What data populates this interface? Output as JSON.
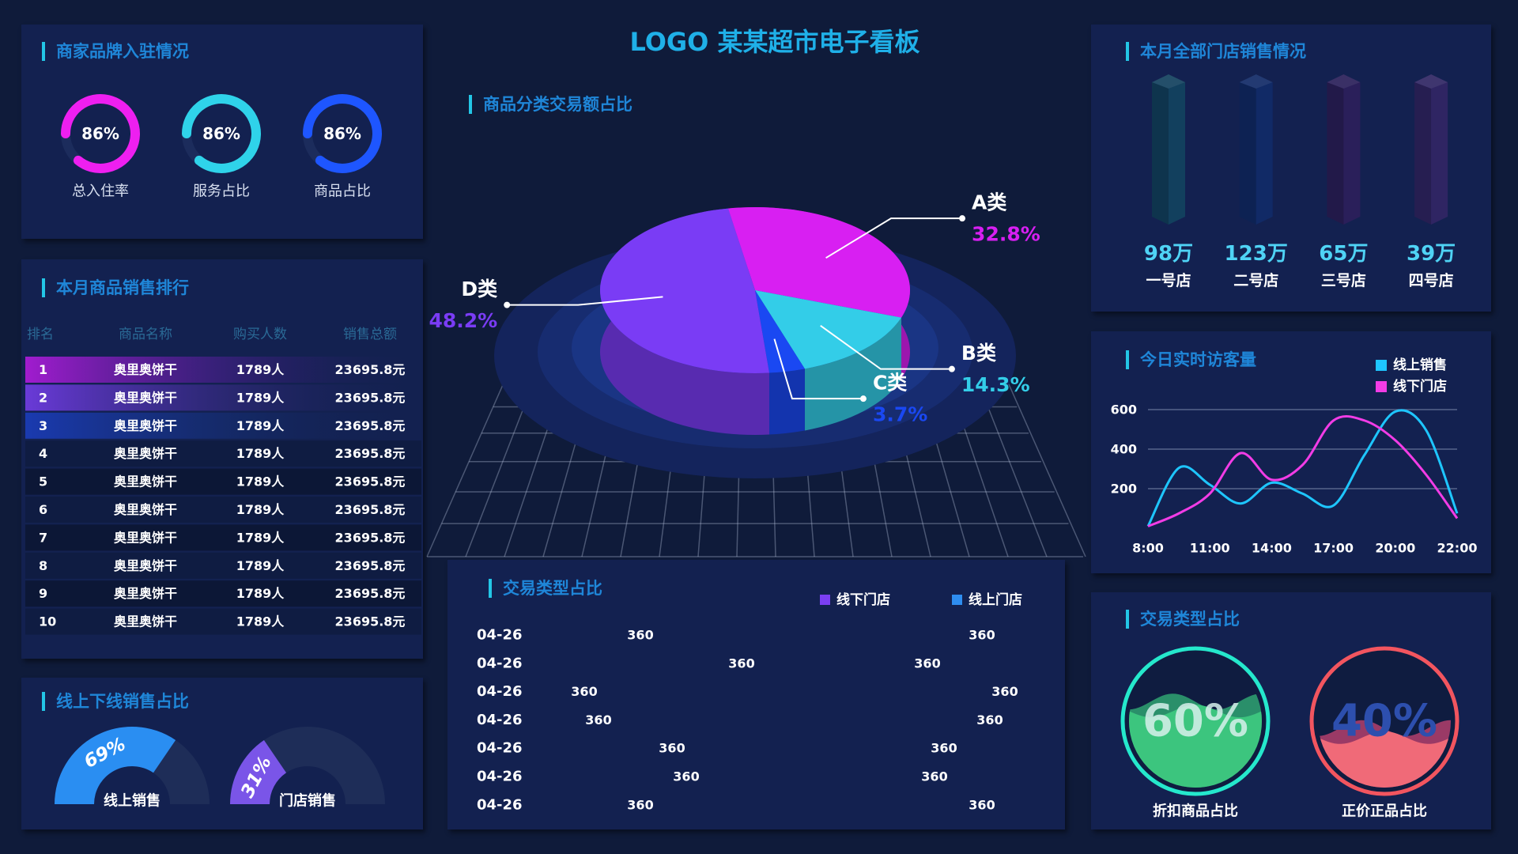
{
  "title": "LOGO 某某超市电子看板",
  "table": {
    "title": "本月商品销售排行",
    "header": [
      "排名",
      "商品名称",
      "购买人数",
      "销售总额"
    ],
    "rows": [
      [
        1,
        "奥里奥饼干",
        "1789人",
        "23695.8元"
      ],
      [
        2,
        "奥里奥饼干",
        "1789人",
        "23695.8元"
      ],
      [
        3,
        "奥里奥饼干",
        "1789人",
        "23695.8元"
      ],
      [
        4,
        "奥里奥饼干",
        "1789人",
        "23695.8元"
      ],
      [
        5,
        "奥里奥饼干",
        "1789人",
        "23695.8元"
      ],
      [
        6,
        "奥里奥饼干",
        "1789人",
        "23695.8元"
      ],
      [
        7,
        "奥里奥饼干",
        "1789人",
        "23695.8元"
      ],
      [
        8,
        "奥里奥饼干",
        "1789人",
        "23695.8元"
      ],
      [
        9,
        "奥里奥饼干",
        "1789人",
        "23695.8元"
      ],
      [
        10,
        "奥里奥饼干",
        "1789人",
        "23695.8元"
      ]
    ]
  },
  "store_sales": {
    "title": "本月全部门店销售情况",
    "items": [
      {
        "amount": "98万",
        "name": "一号店"
      },
      {
        "amount": "123万",
        "name": "二号店"
      },
      {
        "amount": "65万",
        "name": "三号店"
      },
      {
        "amount": "39万",
        "name": "四号店"
      }
    ]
  },
  "chart_data": [
    {
      "type": "donut",
      "title": "商家品牌入驻情况",
      "categories": [
        "总入住率",
        "服务占比",
        "商品占比"
      ],
      "values": [
        86,
        86,
        86
      ],
      "value_labels": [
        "86%",
        "86%",
        "86%"
      ],
      "colors": [
        "#ee1ff0",
        "#2fd3ea",
        "#1e56ff"
      ]
    },
    {
      "type": "pie3d",
      "title": "商品分类交易额占比",
      "categories": [
        "A类",
        "B类",
        "C类",
        "D类"
      ],
      "values": [
        32.8,
        14.3,
        3.7,
        48.2
      ],
      "value_labels": [
        "32.8%",
        "14.3%",
        "3.7%",
        "48.2%"
      ],
      "colors": [
        "#d81ff2",
        "#33cde8",
        "#1a48f2",
        "#7a3cf5"
      ]
    },
    {
      "type": "line",
      "title": "今日实时访客量",
      "categories": [
        "8:00",
        null,
        "11:00",
        null,
        "14:00",
        null,
        "17:00",
        null,
        "20:00",
        null,
        "22:00"
      ],
      "series": [
        {
          "name": "线上销售",
          "color": "#1ec6ff",
          "values": [
            10,
            305,
            220,
            125,
            230,
            175,
            115,
            370,
            590,
            495,
            75
          ]
        },
        {
          "name": "线下门店",
          "color": "#f23ce6",
          "values": [
            10,
            75,
            175,
            380,
            245,
            320,
            545,
            545,
            445,
            270,
            50
          ]
        }
      ],
      "ylim": [
        0,
        650
      ],
      "yticks": [
        200,
        400,
        600
      ],
      "grid": true,
      "legend": "top-right"
    },
    {
      "type": "diverging-bar",
      "title": "交易类型占比",
      "categories": [
        "04-26",
        "04-26",
        "04-26",
        "04-26",
        "04-26",
        "04-26",
        "04-26"
      ],
      "series": [
        {
          "name": "线下门店",
          "color": "#7b3ff2",
          "values": [
            360,
            360,
            360,
            360,
            360,
            360,
            360
          ]
        },
        {
          "name": "线上门店",
          "color": "#2e8df0",
          "values": [
            360,
            360,
            360,
            360,
            360,
            360,
            360
          ]
        }
      ]
    },
    {
      "type": "half-gauge",
      "title": "线上下线销售占比",
      "categories": [
        "线上销售",
        "门店销售"
      ],
      "values": [
        69,
        31
      ],
      "value_labels": [
        "69%",
        "31%"
      ],
      "colors": [
        "#2a8ef2",
        "#7a55e8"
      ]
    },
    {
      "type": "liquid",
      "title": "交易类型占比",
      "categories": [
        "折扣商品占比",
        "正价正品占比"
      ],
      "values": [
        60,
        40
      ],
      "value_labels": [
        "60%",
        "40%"
      ],
      "colors": [
        "#25e8cc",
        "#f2555f"
      ]
    }
  ]
}
